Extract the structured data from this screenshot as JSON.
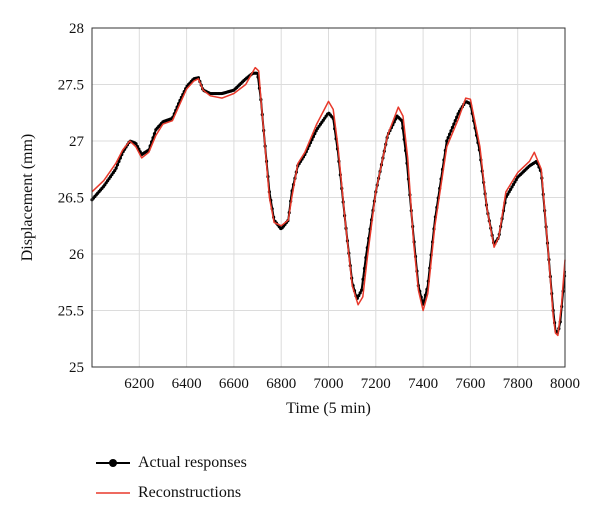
{
  "chart_data": {
    "type": "line",
    "xlabel": "Time (5 min)",
    "ylabel": "Displacement (mm)",
    "xlim": [
      6000,
      8000
    ],
    "ylim": [
      25,
      28
    ],
    "xticks": [
      6200,
      6400,
      6600,
      6800,
      7000,
      7200,
      7400,
      7600,
      7800,
      8000
    ],
    "yticks": [
      25,
      25.5,
      26,
      26.5,
      27,
      27.5,
      28
    ],
    "grid": true,
    "legend_position": "below",
    "series": [
      {
        "name": "Actual responses",
        "color": "#000000",
        "marker": "dot",
        "x": [
          6000,
          6050,
          6100,
          6130,
          6160,
          6185,
          6210,
          6240,
          6270,
          6300,
          6340,
          6370,
          6400,
          6430,
          6450,
          6470,
          6500,
          6550,
          6600,
          6650,
          6680,
          6700,
          6715,
          6730,
          6750,
          6770,
          6800,
          6830,
          6845,
          6870,
          6900,
          6950,
          7000,
          7020,
          7040,
          7070,
          7100,
          7120,
          7140,
          7160,
          7200,
          7250,
          7290,
          7310,
          7330,
          7360,
          7380,
          7400,
          7420,
          7450,
          7500,
          7550,
          7580,
          7600,
          7640,
          7670,
          7700,
          7720,
          7750,
          7800,
          7850,
          7880,
          7900,
          7930,
          7950,
          7960,
          7970,
          7980,
          8000
        ],
        "y": [
          26.48,
          26.6,
          26.75,
          26.9,
          27.0,
          26.98,
          26.88,
          26.92,
          27.1,
          27.17,
          27.2,
          27.35,
          27.48,
          27.55,
          27.56,
          27.45,
          27.42,
          27.42,
          27.45,
          27.55,
          27.6,
          27.6,
          27.35,
          27.0,
          26.55,
          26.3,
          26.22,
          26.3,
          26.55,
          26.78,
          26.88,
          27.1,
          27.25,
          27.2,
          26.9,
          26.3,
          25.75,
          25.6,
          25.68,
          26.0,
          26.55,
          27.05,
          27.22,
          27.18,
          26.85,
          26.15,
          25.72,
          25.55,
          25.72,
          26.3,
          27.0,
          27.25,
          27.35,
          27.33,
          26.9,
          26.4,
          26.08,
          26.15,
          26.5,
          26.68,
          26.78,
          26.82,
          26.72,
          26.0,
          25.5,
          25.32,
          25.3,
          25.4,
          25.85
        ]
      },
      {
        "name": "Reconstructions",
        "color": "#e8392b",
        "marker": "none",
        "x": [
          6000,
          6050,
          6100,
          6130,
          6160,
          6185,
          6210,
          6240,
          6270,
          6300,
          6340,
          6370,
          6400,
          6430,
          6450,
          6470,
          6500,
          6550,
          6600,
          6650,
          6690,
          6705,
          6715,
          6730,
          6750,
          6770,
          6800,
          6830,
          6845,
          6870,
          6900,
          6950,
          7000,
          7020,
          7040,
          7070,
          7100,
          7125,
          7145,
          7165,
          7200,
          7250,
          7295,
          7315,
          7335,
          7360,
          7380,
          7400,
          7420,
          7450,
          7500,
          7550,
          7580,
          7600,
          7640,
          7670,
          7700,
          7720,
          7750,
          7800,
          7850,
          7870,
          7900,
          7930,
          7950,
          7960,
          7970,
          7985,
          8000
        ],
        "y": [
          26.55,
          26.65,
          26.8,
          26.92,
          27.0,
          26.95,
          26.85,
          26.9,
          27.05,
          27.15,
          27.18,
          27.32,
          27.46,
          27.53,
          27.55,
          27.45,
          27.4,
          27.38,
          27.42,
          27.5,
          27.65,
          27.62,
          27.35,
          27.0,
          26.5,
          26.28,
          26.25,
          26.3,
          26.5,
          26.8,
          26.9,
          27.15,
          27.35,
          27.28,
          26.95,
          26.3,
          25.72,
          25.55,
          25.62,
          25.98,
          26.55,
          27.05,
          27.3,
          27.22,
          26.85,
          26.1,
          25.68,
          25.5,
          25.65,
          26.25,
          26.95,
          27.2,
          27.38,
          27.37,
          26.95,
          26.4,
          26.06,
          26.15,
          26.55,
          26.72,
          26.82,
          26.9,
          26.75,
          26.0,
          25.45,
          25.3,
          25.28,
          25.55,
          25.95
        ]
      }
    ]
  }
}
